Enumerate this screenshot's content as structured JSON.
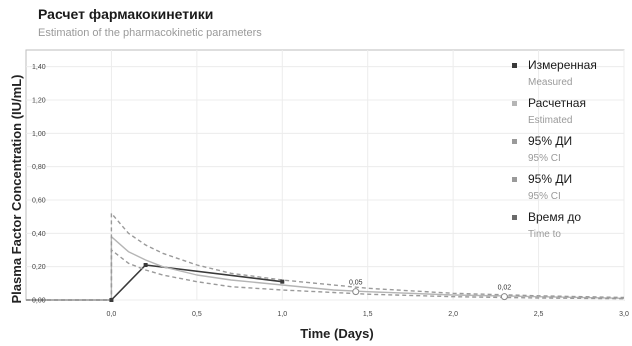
{
  "header": {
    "title": "Расчет фармакокинетики",
    "subtitle": "Estimation of the pharmacokinetic parameters"
  },
  "chart_data": {
    "type": "line",
    "ylabel": "Plasma Factor Concentration (IU/mL)",
    "xlabel": "Time (Days)",
    "xlim": [
      -0.5,
      3.0
    ],
    "ylim": [
      0.0,
      1.5
    ],
    "x_ticks": [
      "0,0",
      "0,5",
      "1,0",
      "1,5",
      "2,0",
      "2,5",
      "3,0"
    ],
    "y_ticks": [
      "0,00",
      "0,20",
      "0,40",
      "0,60",
      "0,80",
      "1,00",
      "1,20",
      "1,40"
    ],
    "x_tick_values": [
      0.0,
      0.5,
      1.0,
      1.5,
      2.0,
      2.5,
      3.0
    ],
    "y_tick_values": [
      0.0,
      0.2,
      0.4,
      0.6,
      0.8,
      1.0,
      1.2,
      1.4
    ],
    "grid": true,
    "legend_position": "right",
    "legend": [
      {
        "label": "Измеренная",
        "sublabel": "Measured",
        "color": "#3a3a3a"
      },
      {
        "label": "Расчетная",
        "sublabel": "Estimated",
        "color": "#b5b5b5"
      },
      {
        "label": "95% ДИ",
        "sublabel": "95% CI",
        "color": "#9a9a9a"
      },
      {
        "label": "95% ДИ",
        "sublabel": "95% CI",
        "color": "#9a9a9a"
      },
      {
        "label": "Время до",
        "sublabel": "Time to",
        "color": "#6a6a6a"
      }
    ],
    "series": [
      {
        "name": "Измеренная",
        "color": "#3a3a3a",
        "style": "solid",
        "x": [
          -0.5,
          0.0,
          0.2,
          1.0
        ],
        "y": [
          0.0,
          0.0,
          0.21,
          0.11
        ]
      },
      {
        "name": "Расчетная",
        "color": "#b5b5b5",
        "style": "solid",
        "x": [
          -0.5,
          0.0,
          0.0,
          0.1,
          0.2,
          0.3,
          0.5,
          0.7,
          1.0,
          1.3,
          1.5,
          2.0,
          2.5,
          3.0
        ],
        "y": [
          0.0,
          0.0,
          0.38,
          0.29,
          0.24,
          0.2,
          0.15,
          0.12,
          0.09,
          0.06,
          0.05,
          0.03,
          0.02,
          0.01
        ]
      },
      {
        "name": "95% ДИ",
        "color": "#9a9a9a",
        "style": "dashed",
        "x": [
          -0.5,
          0.0,
          0.0,
          0.1,
          0.2,
          0.3,
          0.5,
          0.7,
          1.0,
          1.3,
          1.5,
          2.0,
          2.5,
          3.0
        ],
        "y": [
          0.0,
          0.0,
          0.52,
          0.4,
          0.33,
          0.28,
          0.21,
          0.16,
          0.12,
          0.09,
          0.07,
          0.04,
          0.025,
          0.015
        ]
      },
      {
        "name": "95% ДИ",
        "color": "#9a9a9a",
        "style": "dashed",
        "x": [
          -0.5,
          0.0,
          0.0,
          0.1,
          0.2,
          0.3,
          0.5,
          0.7,
          1.0,
          1.3,
          1.5,
          2.0,
          2.5,
          3.0
        ],
        "y": [
          0.0,
          0.0,
          0.3,
          0.22,
          0.18,
          0.15,
          0.11,
          0.08,
          0.06,
          0.045,
          0.035,
          0.02,
          0.012,
          0.008
        ]
      }
    ],
    "annotations": [
      {
        "label": "0,05",
        "x": 1.43,
        "y": 0.05
      },
      {
        "label": "0,02",
        "x": 2.3,
        "y": 0.02
      }
    ]
  }
}
